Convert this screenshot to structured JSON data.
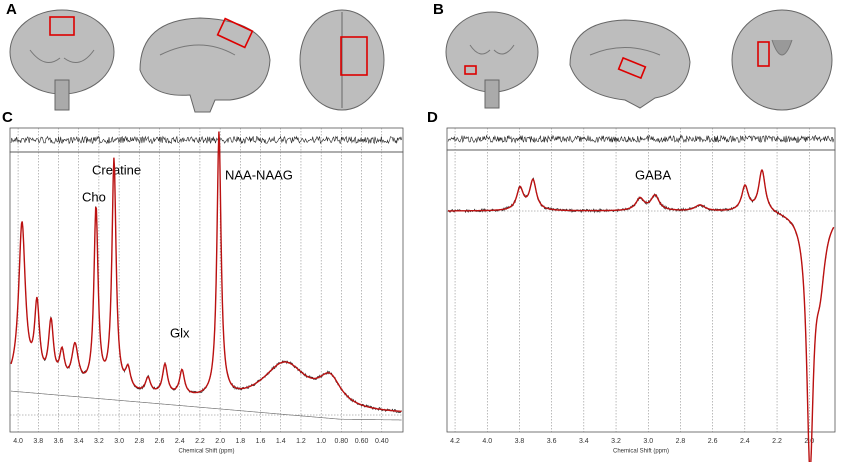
{
  "panels": [
    {
      "label": "A"
    },
    {
      "label": "B"
    }
  ],
  "spectra": [
    {
      "label": "C",
      "xlim": [
        4.08,
        0.19
      ],
      "xlabel": "Chemical Shift (ppm)",
      "annotations": [
        "Cho",
        "Creatine",
        "Glx",
        "NAA-NAAG"
      ],
      "xticks": [
        {
          "value": 4,
          "label": "4.0"
        },
        3.8,
        3.6,
        3.4,
        3.2,
        {
          "value": 3,
          "label": "3.0"
        },
        2.8,
        2.6,
        2.4,
        2.2,
        {
          "value": 2,
          "label": "2.0"
        },
        1.8,
        1.6,
        1.4,
        1.2,
        {
          "value": 1,
          "label": "1.0"
        },
        {
          "value": 0.8,
          "label": "0.80"
        },
        {
          "value": 0.6,
          "label": "0.60"
        },
        {
          "value": 0.4,
          "label": "0.40"
        }
      ]
    },
    {
      "label": "D",
      "xlim": [
        4.25,
        1.84
      ],
      "xlabel": "Chemical Shift (ppm)",
      "annotations": [
        "GABA"
      ],
      "xticks": [
        4.2,
        {
          "value": 4,
          "label": "4.0"
        },
        3.8,
        3.6,
        3.4,
        3.2,
        {
          "value": 3,
          "label": "3.0"
        },
        2.8,
        2.6,
        2.4,
        2.2,
        {
          "value": 2,
          "label": "2.0"
        }
      ]
    }
  ]
}
